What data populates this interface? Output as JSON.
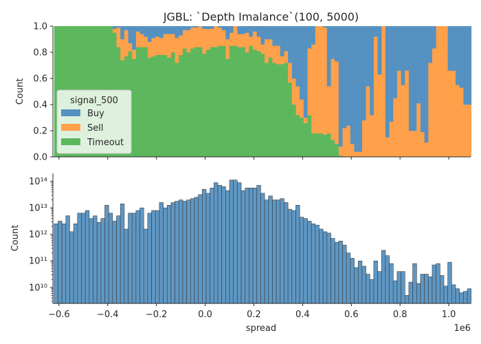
{
  "chart_data": [
    {
      "type": "bar",
      "subtype": "stacked-fill-histogram",
      "title": "JGBL: `Depth Imalance`(100, 5000)",
      "xlabel": "",
      "ylabel": "Count",
      "xlim": [
        -625000,
        1090000
      ],
      "ylim": [
        0,
        1
      ],
      "yticks": [
        0.0,
        0.2,
        0.4,
        0.6,
        0.8,
        1.0
      ],
      "ytick_labels": [
        "0.0",
        "0.2",
        "0.4",
        "0.6",
        "0.8",
        "1.0"
      ],
      "grid": false,
      "legend": {
        "title": "signal_500",
        "placement": "center-left"
      },
      "colors": {
        "Buy": "#5591c1",
        "Sell": "#ffa04a",
        "Timeout": "#5db75d"
      },
      "bins": {
        "start": -620000,
        "width": 16000,
        "count": 107
      },
      "series": [
        {
          "name": "Timeout",
          "values": [
            1.0,
            1.0,
            1.0,
            1.0,
            1.0,
            1.0,
            1.0,
            1.0,
            1.0,
            1.0,
            1.0,
            1.0,
            1.0,
            1.0,
            1.0,
            0.95,
            0.84,
            0.74,
            0.77,
            0.81,
            0.75,
            0.84,
            0.84,
            0.84,
            0.76,
            0.77,
            0.78,
            0.78,
            0.78,
            0.76,
            0.8,
            0.72,
            0.78,
            0.83,
            0.8,
            0.83,
            0.84,
            0.84,
            0.79,
            0.82,
            0.84,
            0.84,
            0.85,
            0.85,
            0.75,
            0.85,
            0.85,
            0.84,
            0.84,
            0.8,
            0.85,
            0.82,
            0.81,
            0.79,
            0.72,
            0.76,
            0.72,
            0.71,
            0.71,
            0.72,
            0.57,
            0.4,
            0.32,
            0.3,
            0.26,
            0.32,
            0.18,
            0.18,
            0.18,
            0.17,
            0.18,
            0.13,
            0.1,
            0.01,
            0,
            0,
            0,
            0,
            0,
            0,
            0,
            0,
            0,
            0,
            0,
            0,
            0,
            0,
            0,
            0,
            0,
            0,
            0,
            0,
            0,
            0,
            0,
            0,
            0,
            0,
            0,
            0,
            0,
            0,
            0,
            0,
            0
          ]
        },
        {
          "name": "Sell",
          "values": [
            0,
            0,
            0,
            0,
            0,
            0,
            0,
            0,
            0,
            0,
            0,
            0,
            0,
            0,
            0,
            0.03,
            0.15,
            0.16,
            0.2,
            0.06,
            0.07,
            0.12,
            0.1,
            0.08,
            0.12,
            0.14,
            0.14,
            0.13,
            0.16,
            0.18,
            0.14,
            0.19,
            0.15,
            0.14,
            0.17,
            0.16,
            0.15,
            0.16,
            0.19,
            0.16,
            0.14,
            0.16,
            0.14,
            0.12,
            0.15,
            0.1,
            0.15,
            0.1,
            0.1,
            0.15,
            0.07,
            0.14,
            0.11,
            0.07,
            0.18,
            0.14,
            0.13,
            0.14,
            0.06,
            0.09,
            0.15,
            0.2,
            0.22,
            0.14,
            0.04,
            0.51,
            0.68,
            0.82,
            0.82,
            0.82,
            0.36,
            0.62,
            0.63,
            0.07,
            0.22,
            0.24,
            0.1,
            0.04,
            0.04,
            0.28,
            0.54,
            0.32,
            0.92,
            0.63,
            1.0,
            0.15,
            0.27,
            0.45,
            0.66,
            0.55,
            0.66,
            0.2,
            0.2,
            0.41,
            0.19,
            0.11,
            0.72,
            0.83,
            1.0,
            1.0,
            1.0,
            0.66,
            0.66,
            0.55,
            0.53,
            0.4,
            0.4
          ]
        },
        {
          "name": "Buy",
          "values": [
            0,
            0,
            0,
            0,
            0,
            0,
            0,
            0,
            0,
            0,
            0,
            0,
            0,
            0,
            0,
            0.02,
            0.01,
            0.1,
            0.03,
            0.13,
            0.18,
            0.04,
            0.06,
            0.08,
            0.12,
            0.09,
            0.08,
            0.09,
            0.06,
            0.06,
            0.06,
            0.09,
            0.07,
            0.03,
            0.03,
            0.01,
            0.01,
            0.0,
            0.02,
            0.02,
            0.02,
            0.0,
            0.01,
            0.03,
            0.1,
            0.05,
            0,
            0.06,
            0.06,
            0.05,
            0.08,
            0.04,
            0.08,
            0.14,
            0.1,
            0.1,
            0.15,
            0.15,
            0.23,
            0.19,
            0.28,
            0.4,
            0.46,
            0.56,
            0.7,
            0.17,
            0.14,
            0,
            0,
            0.01,
            0.46,
            0.25,
            0.27,
            0.92,
            0.78,
            0.76,
            0.9,
            0.96,
            0.96,
            0.72,
            0.46,
            0.68,
            0.08,
            0.37,
            0,
            0.85,
            0.73,
            0.55,
            0.34,
            0.45,
            0.34,
            0.8,
            0.8,
            0.59,
            0.81,
            0.89,
            0.28,
            0.17,
            0,
            0,
            0,
            0.34,
            0.34,
            0.45,
            0.47,
            0.6,
            0.6
          ]
        }
      ]
    },
    {
      "type": "bar",
      "subtype": "histogram",
      "title": "",
      "xlabel": "spread",
      "ylabel": "Count",
      "x_offset_label": "1e6",
      "xlim": [
        -625000,
        1090000
      ],
      "xticks": [
        -600000,
        -400000,
        -200000,
        0,
        200000,
        400000,
        600000,
        800000,
        1000000
      ],
      "xtick_labels": [
        "−0.6",
        "−0.4",
        "−0.2",
        "0.0",
        "0.2",
        "0.4",
        "0.6",
        "0.8",
        "1.0"
      ],
      "yscale": "log",
      "ylim": [
        2500000000.0,
        200000000000000.0
      ],
      "yticks": [
        10000000000.0,
        100000000000.0,
        1000000000000.0,
        10000000000000.0,
        100000000000000.0
      ],
      "ytick_labels": [
        "10¹⁰",
        "10¹¹",
        "10¹²",
        "10¹³",
        "10¹⁴"
      ],
      "grid": false,
      "bins": {
        "start": -620000,
        "width": 16000,
        "count": 107
      },
      "color": "#5591c1",
      "log10_values": [
        12.4,
        12.5,
        12.4,
        12.7,
        12.1,
        12.4,
        12.8,
        12.8,
        12.9,
        12.6,
        12.7,
        12.45,
        12.6,
        13.1,
        12.8,
        12.5,
        12.7,
        13.15,
        12.2,
        12.8,
        12.8,
        12.9,
        13.0,
        12.2,
        12.8,
        12.9,
        12.9,
        13.2,
        13.0,
        13.1,
        13.2,
        13.25,
        13.3,
        13.25,
        13.3,
        13.35,
        13.4,
        13.5,
        13.7,
        13.55,
        13.75,
        13.95,
        13.85,
        13.8,
        13.65,
        14.05,
        14.05,
        13.95,
        13.65,
        13.75,
        13.75,
        13.75,
        13.85,
        13.55,
        13.3,
        13.45,
        13.3,
        13.3,
        13.35,
        13.2,
        12.95,
        12.9,
        13.1,
        12.65,
        12.6,
        12.5,
        12.4,
        12.35,
        12.2,
        12.1,
        12.05,
        11.85,
        11.7,
        11.75,
        11.6,
        11.3,
        11.1,
        10.75,
        11.0,
        10.8,
        10.5,
        10.3,
        11.0,
        10.6,
        11.4,
        11.2,
        10.9,
        10.25,
        10.6,
        10.6,
        9.7,
        10.2,
        10.9,
        10.15,
        10.5,
        10.5,
        10.4,
        10.85,
        10.9,
        10.45,
        10.05,
        10.95,
        10.1,
        9.95,
        9.8,
        9.85,
        9.95
      ]
    }
  ]
}
